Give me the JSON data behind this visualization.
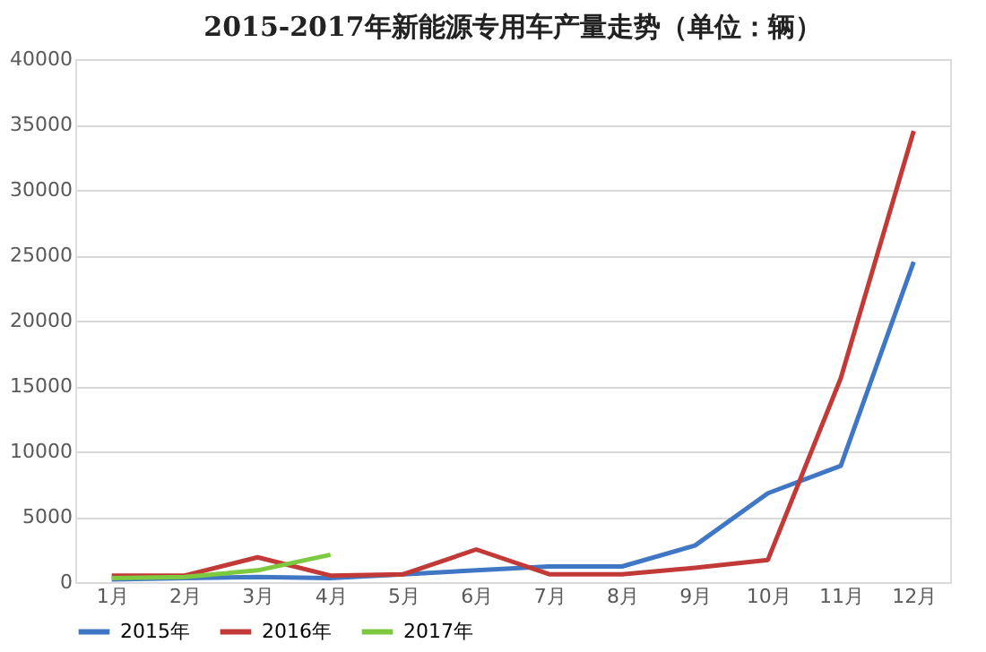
{
  "chart_data": {
    "type": "line",
    "title": "2015-2017年新能源专用车产量走势（单位：辆）",
    "categories": [
      "1月",
      "2月",
      "3月",
      "4月",
      "5月",
      "6月",
      "7月",
      "8月",
      "9月",
      "10月",
      "11月",
      "12月"
    ],
    "series": [
      {
        "name": "2015年",
        "color": "#4077c4",
        "values": [
          200,
          300,
          400,
          300,
          600,
          900,
          1200,
          1200,
          2800,
          6800,
          8900,
          24500
        ]
      },
      {
        "name": "2016年",
        "color": "#c23a37",
        "values": [
          500,
          500,
          1900,
          500,
          600,
          2500,
          600,
          600,
          1100,
          1700,
          15600,
          34500
        ]
      },
      {
        "name": "2017年",
        "color": "#7dc940",
        "values": [
          300,
          400,
          900,
          2100,
          null,
          null,
          null,
          null,
          null,
          null,
          null,
          null
        ]
      }
    ],
    "ylim": [
      0,
      40000
    ],
    "yticks": [
      0,
      5000,
      10000,
      15000,
      20000,
      25000,
      30000,
      35000,
      40000
    ],
    "grid": "y",
    "legend": "bottom",
    "marker": "none",
    "line_style": "solid"
  }
}
